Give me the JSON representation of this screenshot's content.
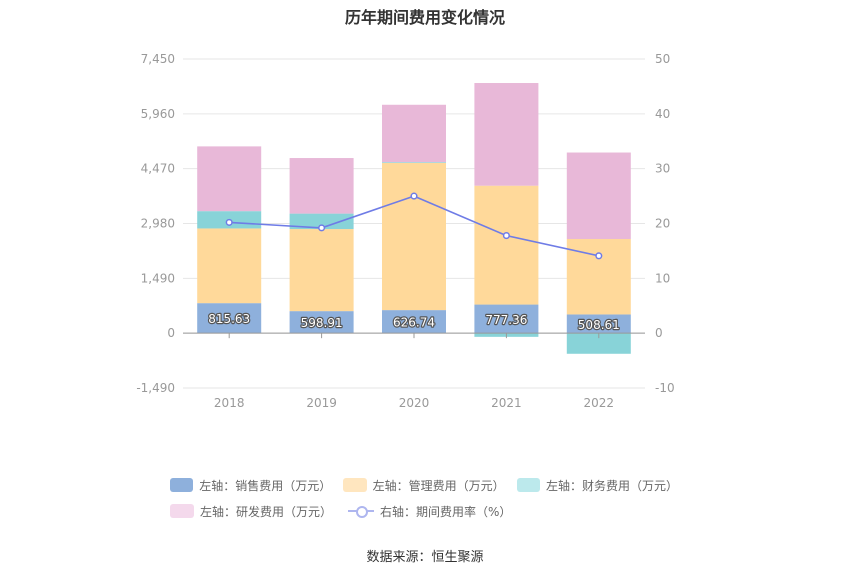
{
  "title": "历年期间费用变化情况",
  "source": "数据来源：恒生聚源",
  "chart_data": {
    "type": "bar",
    "stacked": true,
    "categories": [
      "2018",
      "2019",
      "2020",
      "2021",
      "2022"
    ],
    "y_left": {
      "ticks": [
        "7,450",
        "5,960",
        "4,470",
        "2,980",
        "1,490",
        "0",
        "-1,490"
      ],
      "lim": [
        -1490,
        7450
      ]
    },
    "y_right": {
      "ticks": [
        "50",
        "40",
        "30",
        "20",
        "10",
        "0",
        "-10"
      ],
      "lim": [
        -10,
        50
      ]
    },
    "series": [
      {
        "name": "左轴：销售费用（万元）",
        "axis": "left",
        "color": "#8eb0dc",
        "values": [
          815.63,
          598.91,
          626.74,
          777.36,
          508.61
        ],
        "labels": [
          "815.63",
          "598.91",
          "626.74",
          "777.36",
          "508.61"
        ]
      },
      {
        "name": "左轴：管理费用（万元）",
        "axis": "left",
        "color": "#ffd99a",
        "values": [
          2030,
          2230,
          4000,
          3230,
          2050
        ]
      },
      {
        "name": "左轴：财务费用（万元）",
        "axis": "left",
        "color": "#88d3d8",
        "values": [
          470,
          420,
          20,
          -100,
          -560
        ]
      },
      {
        "name": "左轴：研发费用（万元）",
        "axis": "left",
        "color": "#e8b8d8",
        "values": [
          1760,
          1510,
          1560,
          2790,
          2350
        ]
      }
    ],
    "line": {
      "name": "右轴：期间费用率（%）",
      "axis": "right",
      "color": "#6f7ce6",
      "values": [
        20.2,
        19.2,
        25.0,
        17.8,
        14.1
      ]
    },
    "legend": [
      {
        "label": "左轴：销售费用（万元）",
        "color": "#8eb0dc",
        "kind": "box"
      },
      {
        "label": "左轴：管理费用（万元）",
        "color": "#ffe6bf",
        "kind": "box"
      },
      {
        "label": "左轴：财务费用（万元）",
        "color": "#bce9ec",
        "kind": "box"
      },
      {
        "label": "左轴：研发费用（万元）",
        "color": "#f4d9ec",
        "kind": "box"
      },
      {
        "label": "右轴：期间费用率（%）",
        "color": "#aeb6ef",
        "kind": "line"
      }
    ],
    "legend_position": "bottom"
  }
}
